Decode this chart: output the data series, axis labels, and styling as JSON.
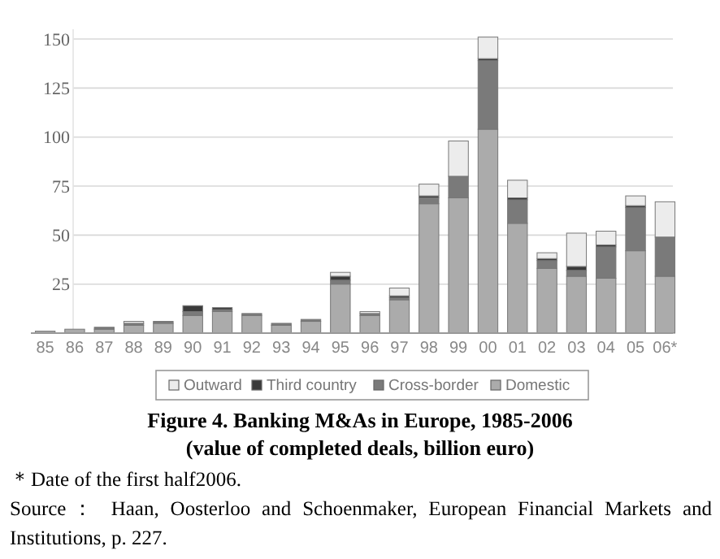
{
  "chart_data": {
    "type": "bar",
    "title": "Figure 4. Banking M&As in Europe, 1985-2006",
    "subtitle": "(value of completed deals, billion euro)",
    "categories": [
      "85",
      "86",
      "87",
      "88",
      "89",
      "90",
      "91",
      "92",
      "93",
      "94",
      "95",
      "96",
      "97",
      "98",
      "99",
      "00",
      "01",
      "02",
      "03",
      "04",
      "05",
      "06*"
    ],
    "stacked": true,
    "series": [
      {
        "name": "Domestic",
        "color": "#ababab",
        "values": [
          1,
          2,
          2,
          4,
          5,
          9,
          11,
          9,
          4,
          6,
          25,
          9,
          17,
          66,
          69,
          104,
          56,
          33,
          29,
          28,
          42,
          29
        ]
      },
      {
        "name": "Cross-border",
        "color": "#7a7a7a",
        "values": [
          0,
          0,
          1,
          1,
          1,
          2,
          1,
          1,
          1,
          1,
          2,
          1,
          1,
          3,
          11,
          35,
          12,
          4,
          3,
          16,
          22,
          20
        ]
      },
      {
        "name": "Third country",
        "color": "#3a3a3a",
        "values": [
          0,
          0,
          0,
          0,
          0,
          3,
          1,
          0,
          0,
          0,
          2,
          0,
          1,
          1,
          0,
          1,
          1,
          1,
          2,
          1,
          1,
          0
        ]
      },
      {
        "name": "Outward",
        "color": "#ececec",
        "values": [
          0,
          0,
          0,
          1,
          0,
          0,
          0,
          0,
          0,
          0,
          2,
          1,
          4,
          6,
          18,
          11,
          9,
          3,
          17,
          7,
          5,
          18
        ]
      }
    ],
    "ylim": [
      0,
      155
    ],
    "yticks": [
      {
        "value": 0,
        "label": null
      },
      25,
      50,
      75,
      100,
      125,
      150
    ],
    "grid": "y",
    "legend": "bottom",
    "annotations": [
      "＊Date of the first half2006.",
      "Source： Haan, Oosterloo and Schoenmaker, European Financial Markets and Institutions, p. 227."
    ]
  }
}
